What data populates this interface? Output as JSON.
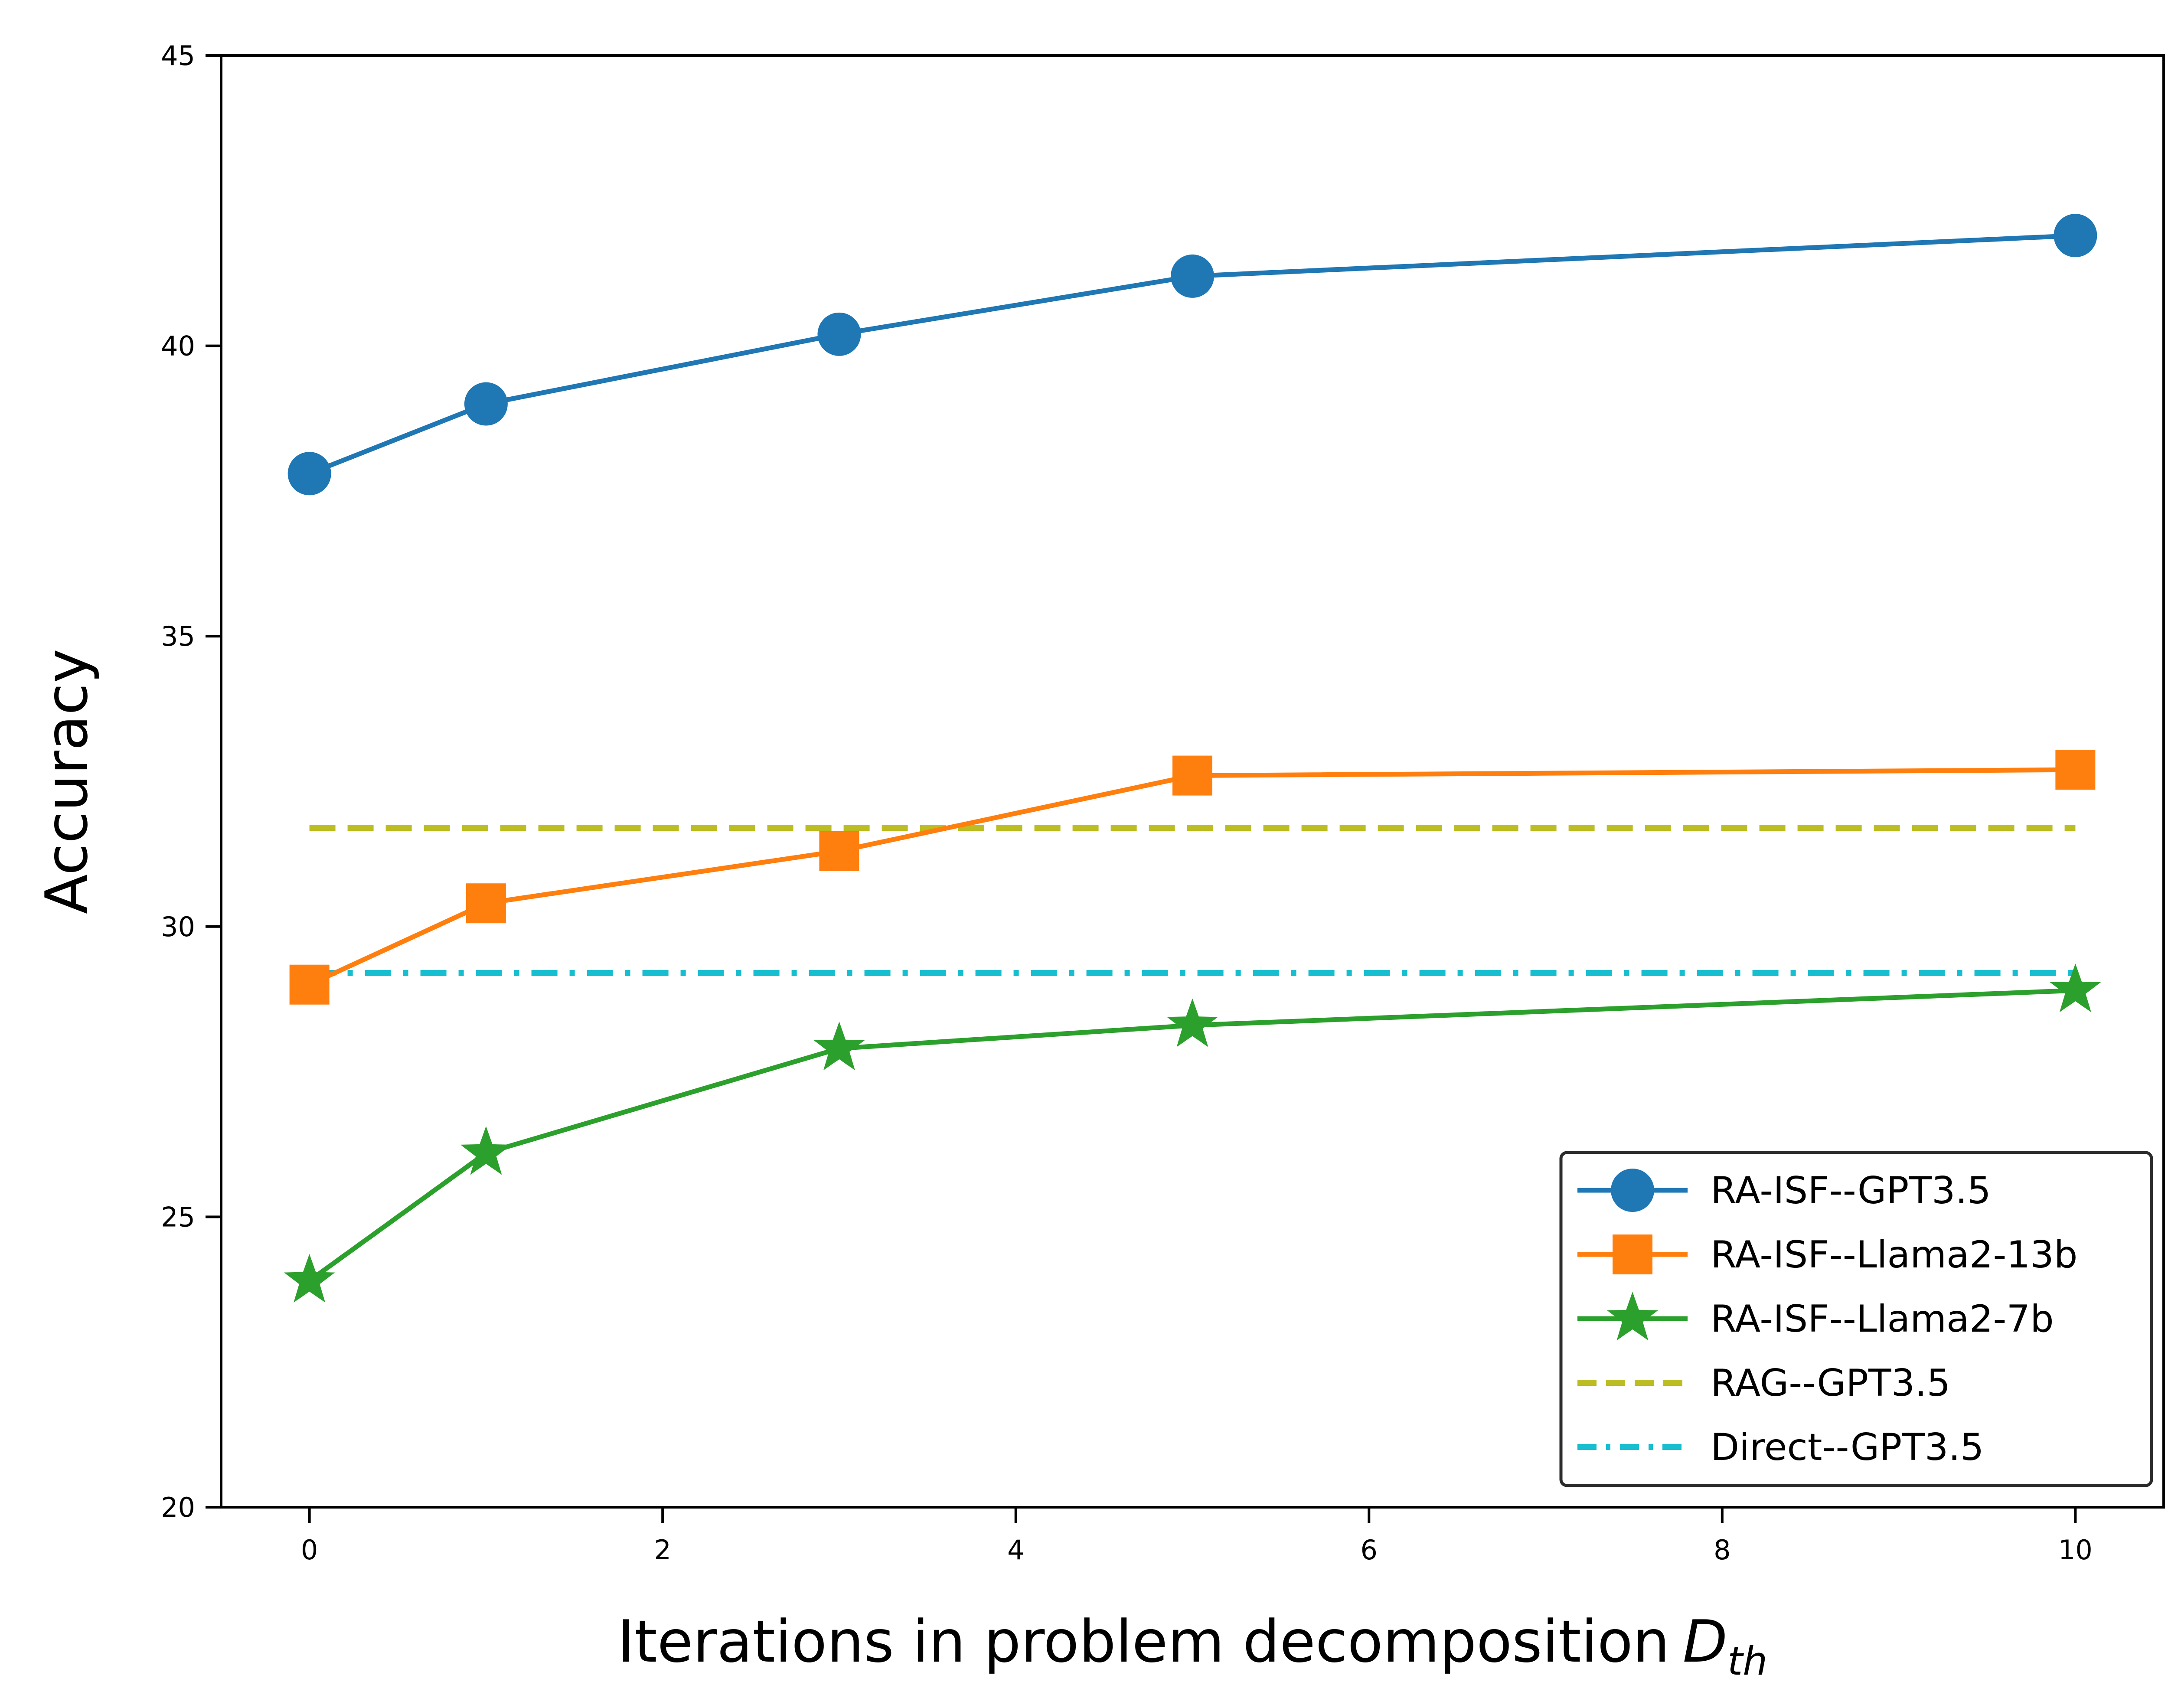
{
  "chart_data": {
    "type": "line",
    "title": "",
    "xlabel": "Iterations in problem decomposition",
    "xlabel_symbol": "D",
    "xlabel_subscript": "th",
    "ylabel": "Accuracy",
    "xlim": [
      -0.5,
      10.5
    ],
    "ylim": [
      20,
      45
    ],
    "xticks": [
      0,
      2,
      4,
      6,
      8,
      10
    ],
    "yticks": [
      20,
      25,
      30,
      35,
      40,
      45
    ],
    "grid": false,
    "legend_position": "lower-right",
    "series": [
      {
        "name": "RA-ISF--GPT3.5",
        "x": [
          0,
          1,
          3,
          5,
          10
        ],
        "values": [
          37.8,
          39.0,
          40.2,
          41.2,
          41.9
        ],
        "color": "#1f77b4",
        "marker": "circle",
        "linestyle": "solid"
      },
      {
        "name": "RA-ISF--Llama2-13b",
        "x": [
          0,
          1,
          3,
          5,
          10
        ],
        "values": [
          29.0,
          30.4,
          31.3,
          32.6,
          32.7
        ],
        "color": "#ff7f0e",
        "marker": "square",
        "linestyle": "solid"
      },
      {
        "name": "RA-ISF--Llama2-7b",
        "x": [
          0,
          1,
          3,
          5,
          10
        ],
        "values": [
          23.9,
          26.1,
          27.9,
          28.3,
          28.9
        ],
        "color": "#2ca02c",
        "marker": "star",
        "linestyle": "solid"
      },
      {
        "name": "RAG--GPT3.5",
        "x": [
          0,
          10
        ],
        "values": [
          31.7,
          31.7
        ],
        "color": "#bcbd22",
        "marker": "none",
        "linestyle": "dashed"
      },
      {
        "name": "Direct--GPT3.5",
        "x": [
          0,
          10
        ],
        "values": [
          29.2,
          29.2
        ],
        "color": "#17becf",
        "marker": "none",
        "linestyle": "dashdot"
      }
    ]
  }
}
